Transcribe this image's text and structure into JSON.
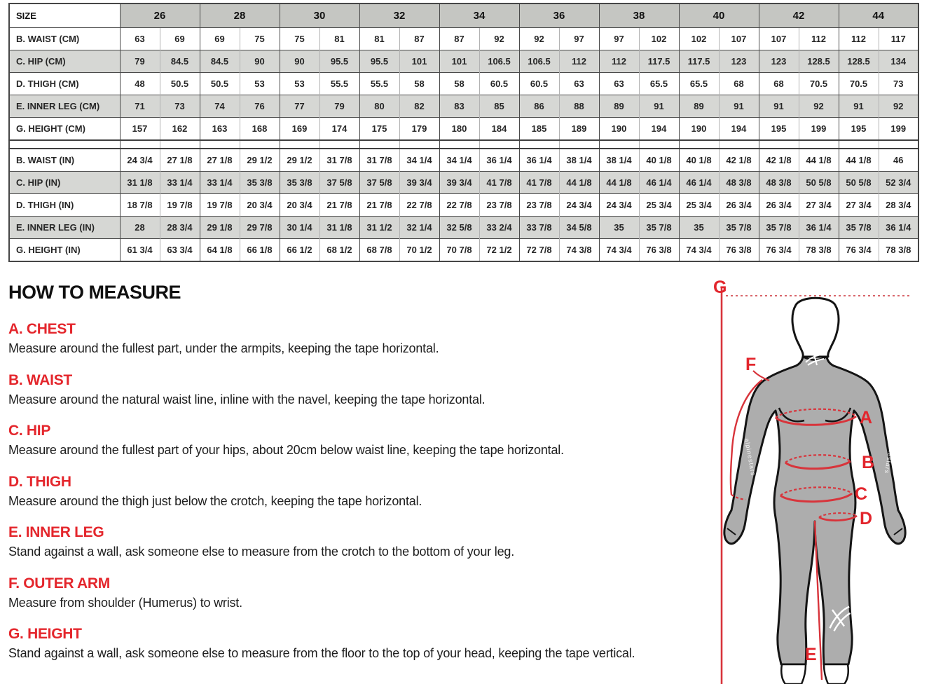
{
  "table": {
    "header_label": "SIZE",
    "sizes": [
      "26",
      "28",
      "30",
      "32",
      "34",
      "36",
      "38",
      "40",
      "42",
      "44"
    ],
    "cm_rows": [
      {
        "label": "B. WAIST (CM)",
        "shaded": false,
        "values": [
          "63",
          "69",
          "69",
          "75",
          "75",
          "81",
          "81",
          "87",
          "87",
          "92",
          "92",
          "97",
          "97",
          "102",
          "102",
          "107",
          "107",
          "112",
          "112",
          "117"
        ]
      },
      {
        "label": "C. HIP (CM)",
        "shaded": true,
        "values": [
          "79",
          "84.5",
          "84.5",
          "90",
          "90",
          "95.5",
          "95.5",
          "101",
          "101",
          "106.5",
          "106.5",
          "112",
          "112",
          "117.5",
          "117.5",
          "123",
          "123",
          "128.5",
          "128.5",
          "134"
        ]
      },
      {
        "label": "D. THIGH (CM)",
        "shaded": false,
        "values": [
          "48",
          "50.5",
          "50.5",
          "53",
          "53",
          "55.5",
          "55.5",
          "58",
          "58",
          "60.5",
          "60.5",
          "63",
          "63",
          "65.5",
          "65.5",
          "68",
          "68",
          "70.5",
          "70.5",
          "73"
        ]
      },
      {
        "label": "E. INNER LEG (CM)",
        "shaded": true,
        "values": [
          "71",
          "73",
          "74",
          "76",
          "77",
          "79",
          "80",
          "82",
          "83",
          "85",
          "86",
          "88",
          "89",
          "91",
          "89",
          "91",
          "91",
          "92",
          "91",
          "92"
        ]
      },
      {
        "label": "G. HEIGHT (CM)",
        "shaded": false,
        "values": [
          "157",
          "162",
          "163",
          "168",
          "169",
          "174",
          "175",
          "179",
          "180",
          "184",
          "185",
          "189",
          "190",
          "194",
          "190",
          "194",
          "195",
          "199",
          "195",
          "199"
        ]
      }
    ],
    "in_rows": [
      {
        "label": "B. WAIST (IN)",
        "shaded": false,
        "values": [
          "24 3/4",
          "27 1/8",
          "27 1/8",
          "29 1/2",
          "29 1/2",
          "31 7/8",
          "31 7/8",
          "34 1/4",
          "34 1/4",
          "36 1/4",
          "36 1/4",
          "38 1/4",
          "38 1/4",
          "40 1/8",
          "40 1/8",
          "42 1/8",
          "42 1/8",
          "44 1/8",
          "44 1/8",
          "46"
        ]
      },
      {
        "label": "C. HIP (IN)",
        "shaded": true,
        "values": [
          "31 1/8",
          "33 1/4",
          "33 1/4",
          "35 3/8",
          "35 3/8",
          "37 5/8",
          "37 5/8",
          "39 3/4",
          "39 3/4",
          "41 7/8",
          "41 7/8",
          "44 1/8",
          "44 1/8",
          "46 1/4",
          "46 1/4",
          "48 3/8",
          "48 3/8",
          "50 5/8",
          "50 5/8",
          "52 3/4"
        ]
      },
      {
        "label": "D. THIGH (IN)",
        "shaded": false,
        "values": [
          "18 7/8",
          "19 7/8",
          "19 7/8",
          "20 3/4",
          "20 3/4",
          "21 7/8",
          "21 7/8",
          "22 7/8",
          "22 7/8",
          "23 7/8",
          "23 7/8",
          "24 3/4",
          "24 3/4",
          "25 3/4",
          "25 3/4",
          "26 3/4",
          "26 3/4",
          "27 3/4",
          "27 3/4",
          "28 3/4"
        ]
      },
      {
        "label": "E. INNER LEG (IN)",
        "shaded": true,
        "values": [
          "28",
          "28 3/4",
          "29 1/8",
          "29 7/8",
          "30 1/4",
          "31 1/8",
          "31 1/2",
          "32 1/4",
          "32 5/8",
          "33 2/4",
          "33 7/8",
          "34 5/8",
          "35",
          "35 7/8",
          "35",
          "35 7/8",
          "35 7/8",
          "36 1/4",
          "35 7/8",
          "36 1/4"
        ]
      },
      {
        "label": "G. HEIGHT (IN)",
        "shaded": false,
        "values": [
          "61 3/4",
          "63 3/4",
          "64 1/8",
          "66 1/8",
          "66 1/2",
          "68 1/2",
          "68 7/8",
          "70 1/2",
          "70 7/8",
          "72 1/2",
          "72 7/8",
          "74 3/8",
          "74 3/4",
          "76 3/8",
          "74 3/4",
          "76 3/8",
          "76 3/4",
          "78 3/8",
          "76 3/4",
          "78 3/8"
        ]
      }
    ]
  },
  "measure": {
    "title": "HOW TO MEASURE",
    "sections": [
      {
        "title": "A. CHEST",
        "text": "Measure around the fullest part, under the armpits, keeping the tape horizontal."
      },
      {
        "title": "B. WAIST",
        "text": "Measure around the natural waist line, inline with the navel, keeping the tape horizontal."
      },
      {
        "title": "C. HIP",
        "text": "Measure around the fullest part of your hips, about 20cm below waist line, keeping the tape horizontal."
      },
      {
        "title": "D. THIGH",
        "text": "Measure around the thigh just below the crotch, keeping the tape horizontal."
      },
      {
        "title": "E. INNER LEG",
        "text": "Stand against a wall, ask someone else to measure from the crotch to the bottom of your leg."
      },
      {
        "title": "F. OUTER ARM",
        "text": "Measure from shoulder (Humerus) to wrist."
      },
      {
        "title": "G. HEIGHT",
        "text": "Stand against a wall, ask someone else to measure from the floor to the top of your head, keeping the tape vertical."
      }
    ]
  },
  "figure": {
    "labels": {
      "a": "A",
      "b": "B",
      "c": "C",
      "d": "D",
      "e": "E",
      "f": "F",
      "g": "G"
    },
    "logo_text": "alpinestars"
  },
  "colors": {
    "accent_red": "#e4262c",
    "line_red": "#d8343b",
    "header_gray": "#c5c6c2",
    "stripe_gray": "#d6d7d4",
    "body_gray": "#adadad",
    "border_dark": "#464646"
  }
}
